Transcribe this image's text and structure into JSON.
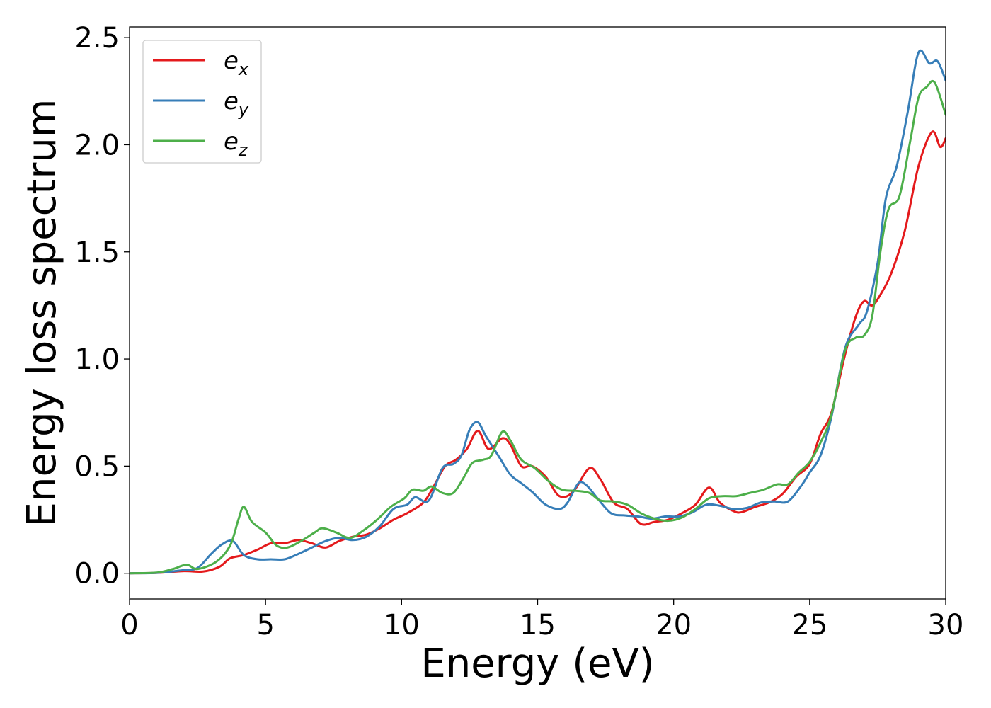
{
  "chart_data": {
    "type": "line",
    "xlabel": "Energy (eV)",
    "ylabel": "Energy loss spectrum",
    "xlim": [
      0,
      30
    ],
    "ylim": [
      -0.12,
      2.55
    ],
    "xticks": [
      0,
      5,
      10,
      15,
      20,
      25,
      30
    ],
    "xtick_labels": [
      "0",
      "5",
      "10",
      "15",
      "20",
      "25",
      "30"
    ],
    "yticks": [
      0.0,
      0.5,
      1.0,
      1.5,
      2.0,
      2.5
    ],
    "ytick_labels": [
      "0.0",
      "0.5",
      "1.0",
      "1.5",
      "2.0",
      "2.5"
    ],
    "grid": false,
    "legend_position": "top-left",
    "series": [
      {
        "name": "e",
        "sub": "x",
        "color": "#e41a1c",
        "points": [
          [
            0,
            0
          ],
          [
            1,
            0.002
          ],
          [
            2,
            0.01
          ],
          [
            2.7,
            0.008
          ],
          [
            3.3,
            0.03
          ],
          [
            3.7,
            0.07
          ],
          [
            4.2,
            0.085
          ],
          [
            4.7,
            0.11
          ],
          [
            5.2,
            0.14
          ],
          [
            5.7,
            0.14
          ],
          [
            6.2,
            0.155
          ],
          [
            6.7,
            0.14
          ],
          [
            7.2,
            0.12
          ],
          [
            7.7,
            0.15
          ],
          [
            8.2,
            0.17
          ],
          [
            8.7,
            0.18
          ],
          [
            9.2,
            0.21
          ],
          [
            9.7,
            0.25
          ],
          [
            10.2,
            0.28
          ],
          [
            10.8,
            0.33
          ],
          [
            11.2,
            0.41
          ],
          [
            11.6,
            0.5
          ],
          [
            12.0,
            0.53
          ],
          [
            12.4,
            0.58
          ],
          [
            12.8,
            0.665
          ],
          [
            13.2,
            0.58
          ],
          [
            13.7,
            0.63
          ],
          [
            14.0,
            0.6
          ],
          [
            14.4,
            0.5
          ],
          [
            14.8,
            0.5
          ],
          [
            15.3,
            0.45
          ],
          [
            15.8,
            0.36
          ],
          [
            16.3,
            0.38
          ],
          [
            16.9,
            0.49
          ],
          [
            17.3,
            0.44
          ],
          [
            17.8,
            0.33
          ],
          [
            18.3,
            0.3
          ],
          [
            18.8,
            0.23
          ],
          [
            19.3,
            0.24
          ],
          [
            19.8,
            0.25
          ],
          [
            20.3,
            0.28
          ],
          [
            20.8,
            0.32
          ],
          [
            21.3,
            0.4
          ],
          [
            21.7,
            0.33
          ],
          [
            22.2,
            0.29
          ],
          [
            22.5,
            0.285
          ],
          [
            23.0,
            0.31
          ],
          [
            23.5,
            0.33
          ],
          [
            24.0,
            0.37
          ],
          [
            24.5,
            0.45
          ],
          [
            25.0,
            0.51
          ],
          [
            25.4,
            0.65
          ],
          [
            25.8,
            0.75
          ],
          [
            26.3,
            1.02
          ],
          [
            26.7,
            1.2
          ],
          [
            27.0,
            1.27
          ],
          [
            27.3,
            1.25
          ],
          [
            27.6,
            1.3
          ],
          [
            28.0,
            1.4
          ],
          [
            28.5,
            1.6
          ],
          [
            29.0,
            1.9
          ],
          [
            29.5,
            2.06
          ],
          [
            29.8,
            1.99
          ],
          [
            30,
            2.03
          ]
        ]
      },
      {
        "name": "e",
        "sub": "y",
        "color": "#377eb8",
        "points": [
          [
            0,
            0
          ],
          [
            1,
            0.002
          ],
          [
            2,
            0.015
          ],
          [
            2.5,
            0.025
          ],
          [
            3.0,
            0.09
          ],
          [
            3.4,
            0.135
          ],
          [
            3.8,
            0.15
          ],
          [
            4.2,
            0.085
          ],
          [
            4.7,
            0.065
          ],
          [
            5.2,
            0.065
          ],
          [
            5.7,
            0.065
          ],
          [
            6.2,
            0.09
          ],
          [
            6.7,
            0.12
          ],
          [
            7.2,
            0.15
          ],
          [
            7.7,
            0.165
          ],
          [
            8.2,
            0.155
          ],
          [
            8.7,
            0.17
          ],
          [
            9.2,
            0.22
          ],
          [
            9.7,
            0.3
          ],
          [
            10.2,
            0.32
          ],
          [
            10.5,
            0.355
          ],
          [
            11.0,
            0.34
          ],
          [
            11.5,
            0.49
          ],
          [
            11.9,
            0.51
          ],
          [
            12.2,
            0.55
          ],
          [
            12.5,
            0.67
          ],
          [
            12.8,
            0.705
          ],
          [
            13.1,
            0.64
          ],
          [
            13.6,
            0.54
          ],
          [
            14.0,
            0.46
          ],
          [
            14.4,
            0.42
          ],
          [
            14.8,
            0.38
          ],
          [
            15.3,
            0.32
          ],
          [
            15.8,
            0.3
          ],
          [
            16.1,
            0.33
          ],
          [
            16.5,
            0.42
          ],
          [
            16.8,
            0.41
          ],
          [
            17.2,
            0.35
          ],
          [
            17.7,
            0.28
          ],
          [
            18.2,
            0.27
          ],
          [
            18.7,
            0.265
          ],
          [
            19.2,
            0.255
          ],
          [
            19.7,
            0.265
          ],
          [
            20.2,
            0.265
          ],
          [
            20.7,
            0.285
          ],
          [
            21.2,
            0.32
          ],
          [
            21.7,
            0.315
          ],
          [
            22.2,
            0.3
          ],
          [
            22.7,
            0.305
          ],
          [
            23.2,
            0.33
          ],
          [
            23.7,
            0.335
          ],
          [
            24.2,
            0.335
          ],
          [
            24.7,
            0.41
          ],
          [
            25.0,
            0.47
          ],
          [
            25.4,
            0.55
          ],
          [
            25.8,
            0.73
          ],
          [
            26.3,
            1.05
          ],
          [
            26.8,
            1.16
          ],
          [
            27.1,
            1.22
          ],
          [
            27.5,
            1.45
          ],
          [
            27.8,
            1.75
          ],
          [
            28.2,
            1.9
          ],
          [
            28.6,
            2.15
          ],
          [
            29.0,
            2.43
          ],
          [
            29.4,
            2.38
          ],
          [
            29.7,
            2.39
          ],
          [
            30,
            2.3
          ]
        ]
      },
      {
        "name": "e",
        "sub": "z",
        "color": "#4daf4a",
        "points": [
          [
            0,
            0
          ],
          [
            1,
            0.003
          ],
          [
            1.6,
            0.02
          ],
          [
            2.1,
            0.04
          ],
          [
            2.5,
            0.02
          ],
          [
            3.2,
            0.055
          ],
          [
            3.7,
            0.13
          ],
          [
            4.0,
            0.25
          ],
          [
            4.2,
            0.31
          ],
          [
            4.5,
            0.24
          ],
          [
            5.0,
            0.19
          ],
          [
            5.4,
            0.13
          ],
          [
            5.8,
            0.12
          ],
          [
            6.3,
            0.15
          ],
          [
            6.8,
            0.19
          ],
          [
            7.1,
            0.21
          ],
          [
            7.6,
            0.19
          ],
          [
            8.1,
            0.165
          ],
          [
            8.6,
            0.2
          ],
          [
            9.1,
            0.25
          ],
          [
            9.6,
            0.31
          ],
          [
            10.1,
            0.35
          ],
          [
            10.4,
            0.39
          ],
          [
            10.8,
            0.385
          ],
          [
            11.1,
            0.405
          ],
          [
            11.5,
            0.375
          ],
          [
            11.9,
            0.375
          ],
          [
            12.3,
            0.45
          ],
          [
            12.6,
            0.515
          ],
          [
            13.0,
            0.53
          ],
          [
            13.3,
            0.55
          ],
          [
            13.7,
            0.66
          ],
          [
            14.0,
            0.62
          ],
          [
            14.4,
            0.53
          ],
          [
            14.9,
            0.49
          ],
          [
            15.4,
            0.43
          ],
          [
            15.9,
            0.39
          ],
          [
            16.4,
            0.385
          ],
          [
            16.9,
            0.375
          ],
          [
            17.3,
            0.34
          ],
          [
            17.8,
            0.335
          ],
          [
            18.3,
            0.32
          ],
          [
            18.8,
            0.28
          ],
          [
            19.3,
            0.255
          ],
          [
            19.8,
            0.245
          ],
          [
            20.3,
            0.26
          ],
          [
            20.8,
            0.3
          ],
          [
            21.3,
            0.35
          ],
          [
            21.8,
            0.36
          ],
          [
            22.3,
            0.36
          ],
          [
            22.8,
            0.375
          ],
          [
            23.3,
            0.39
          ],
          [
            23.8,
            0.415
          ],
          [
            24.2,
            0.415
          ],
          [
            24.6,
            0.47
          ],
          [
            25.0,
            0.52
          ],
          [
            25.4,
            0.61
          ],
          [
            25.8,
            0.74
          ],
          [
            26.3,
            1.04
          ],
          [
            26.7,
            1.1
          ],
          [
            27.0,
            1.11
          ],
          [
            27.3,
            1.2
          ],
          [
            27.6,
            1.5
          ],
          [
            27.9,
            1.7
          ],
          [
            28.3,
            1.76
          ],
          [
            28.7,
            2.02
          ],
          [
            29.0,
            2.22
          ],
          [
            29.3,
            2.27
          ],
          [
            29.6,
            2.29
          ],
          [
            30,
            2.14
          ]
        ]
      }
    ]
  }
}
